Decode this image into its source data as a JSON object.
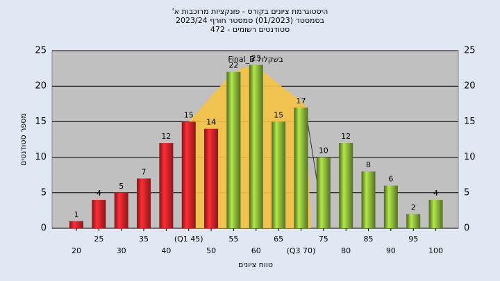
{
  "chart_data": {
    "type": "bar",
    "title": [
      "היסטוגרמת ציונים בקורס - פונקציות מרוכבות א'",
      "בסמסטר (01/2023) סמסטר חורף 2023/24",
      "סטודנטים רשומים - 472"
    ],
    "annotation": "בשקלול Final_B",
    "x_label": "טווח ציונים",
    "y_label": "מספר סטודנטים",
    "categories": [
      "20",
      "25",
      "30",
      "35",
      "40",
      "(Q1 45)",
      "50",
      "55",
      "60",
      "65",
      "(Q3 70)",
      "75",
      "80",
      "85",
      "90",
      "95",
      "100"
    ],
    "values": [
      1,
      4,
      5,
      7,
      12,
      15,
      14,
      22,
      23,
      15,
      17,
      10,
      12,
      8,
      6,
      2,
      4
    ],
    "colors": [
      "#e8242a",
      "#e8242a",
      "#e8242a",
      "#e8242a",
      "#e8242a",
      "#e8242a",
      "#e8242a",
      "#8dba3a",
      "#8dba3a",
      "#8dba3a",
      "#8dba3a",
      "#8dba3a",
      "#8dba3a",
      "#8dba3a",
      "#8dba3a",
      "#8dba3a",
      "#8dba3a"
    ],
    "ylim": [
      0,
      25
    ],
    "yticks": [
      0,
      5,
      10,
      15,
      20,
      25
    ],
    "grid": true
  }
}
